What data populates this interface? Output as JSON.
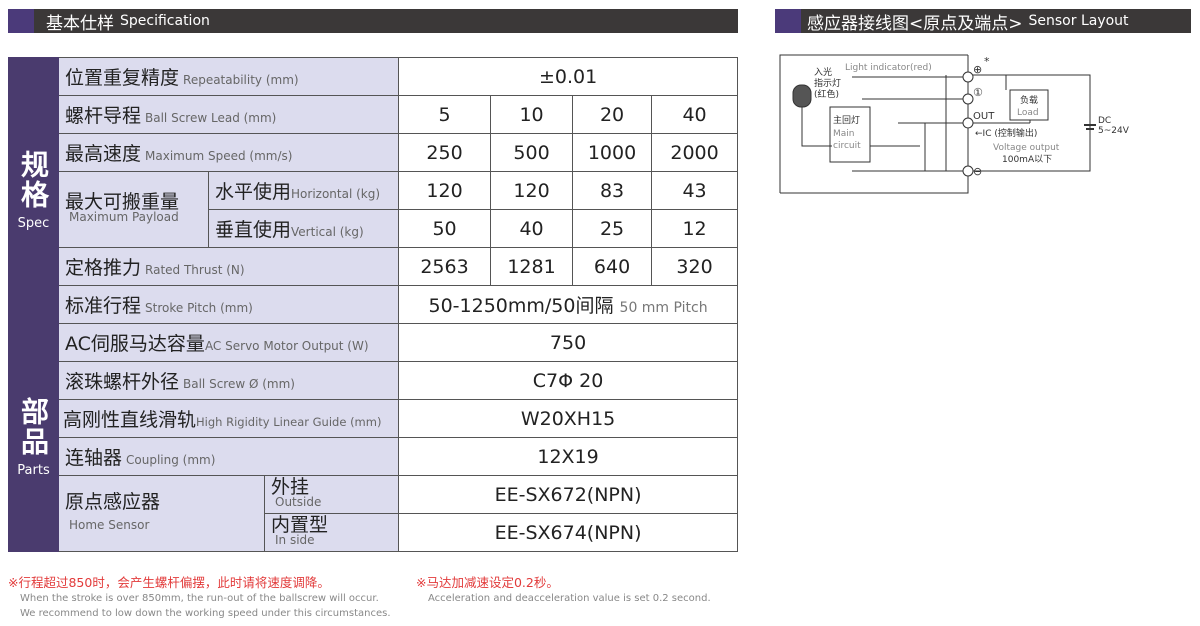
{
  "spec_header": {
    "cn": "基本仕样",
    "en": "Specification"
  },
  "sensor_header": {
    "cn": "感应器接线图<原点及端点>",
    "en": "Sensor Layout"
  },
  "categories": {
    "spec_cn": "规格",
    "spec_en": "Spec",
    "parts_cn": "部品",
    "parts_en": "Parts"
  },
  "rows": {
    "repeat": {
      "cn": "位置重复精度",
      "en": "Repeatability (mm)",
      "value": "±0.01"
    },
    "lead": {
      "cn": "螺杆导程",
      "en": "Ball Screw Lead (mm)",
      "values": [
        "5",
        "10",
        "20",
        "40"
      ]
    },
    "speed": {
      "cn": "最高速度",
      "en": "Maximum Speed (mm/s)",
      "values": [
        "250",
        "500",
        "1000",
        "2000"
      ]
    },
    "payload": {
      "cn": "最大可搬重量",
      "en": "Maximum Payload",
      "horizontal": {
        "cn": "水平使用",
        "en": "Horizontal (kg)",
        "values": [
          "120",
          "120",
          "83",
          "43"
        ]
      },
      "vertical": {
        "cn": "垂直使用",
        "en": "Vertical (kg)",
        "values": [
          "50",
          "40",
          "25",
          "12"
        ]
      }
    },
    "thrust": {
      "cn": "定格推力",
      "en": "Rated Thrust (N)",
      "values": [
        "2563",
        "1281",
        "640",
        "320"
      ]
    },
    "stroke": {
      "cn": "标准行程",
      "en": "Stroke Pitch (mm)",
      "value": "50-1250mm/50间隔",
      "value_en": "50 mm Pitch"
    },
    "motor": {
      "cn": "AC伺服马达容量",
      "en": "AC Servo Motor Output (W)",
      "value": "750"
    },
    "screw": {
      "cn": "滚珠螺杆外径",
      "en": "Ball Screw Ø (mm)",
      "value": "C7Φ 20"
    },
    "guide": {
      "cn": "高刚性直线滑轨",
      "en": "High Rigidity Linear Guide (mm)",
      "value": "W20XH15"
    },
    "coupling": {
      "cn": "连轴器",
      "en": "Coupling (mm)",
      "value": "12X19"
    },
    "home": {
      "cn": "原点感应器",
      "en": "Home Sensor",
      "outside": {
        "cn": "外挂",
        "en": "Outside",
        "value": "EE-SX672(NPN)"
      },
      "inside": {
        "cn": "内置型",
        "en": "In side",
        "value": "EE-SX674(NPN)"
      }
    }
  },
  "notes": {
    "n1_cn": "※行程超过850时，会产生螺杆偏摆，此时请将速度调降。",
    "n1_en1": "When the stroke is over 850mm, the run-out of the ballscrew will occur.",
    "n1_en2": "We recommend to low down the working speed under this circumstances.",
    "n2_cn": "※马达加减速设定0.2秒。",
    "n2_en": "Acceleration and deacceleration value is set 0.2 second."
  },
  "diagram": {
    "light_indicator": "Light indicator(red)",
    "led_cn1": "入光",
    "led_cn2": "指示灯",
    "led_cn3": "(红色)",
    "main_cn": "主回灯",
    "main_en1": "Main",
    "main_en2": "circuit",
    "load_cn": "负载",
    "load_en": "Load",
    "plus": "⊕",
    "one": "①",
    "out": "OUT",
    "minus": "⊖",
    "star": "*",
    "ic": "←IC (控制输出)",
    "voltage": "Voltage output",
    "current": "100mA以下",
    "dc": "DC",
    "dcv": "5~24V"
  },
  "colors": {
    "header_bg": "#3b3838",
    "accent": "#4a3b6e",
    "label_bg": "#dcdcee",
    "note_red": "#e23b3b"
  }
}
